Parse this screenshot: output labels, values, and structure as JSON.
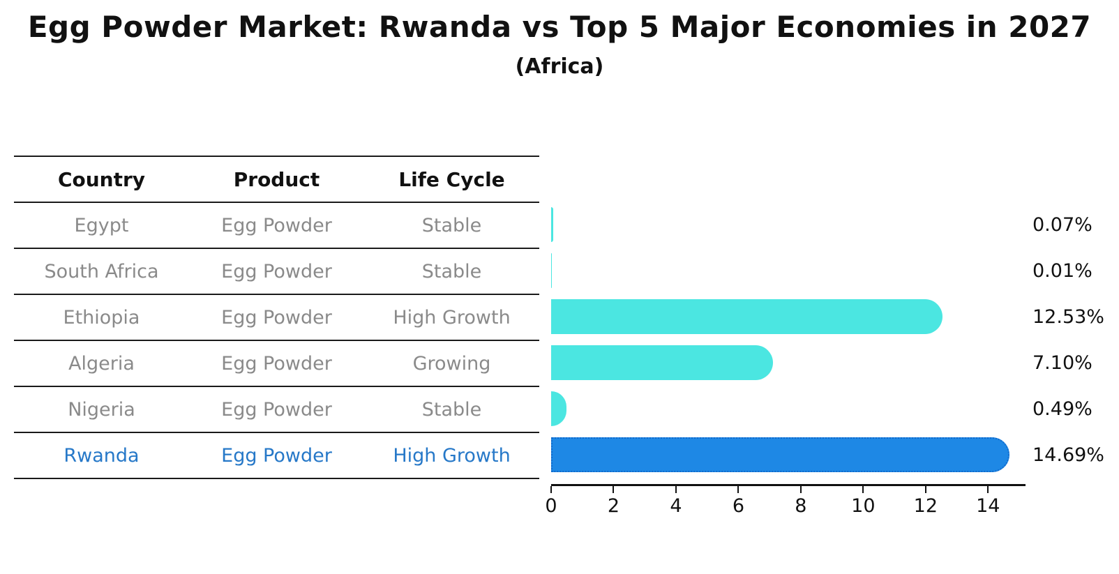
{
  "title": "Egg Powder Market: Rwanda vs Top 5 Major Economies in 2027",
  "subtitle": "(Africa)",
  "table": {
    "headers": [
      "Country",
      "Product",
      "Life Cycle"
    ],
    "rows": [
      {
        "country": "Egypt",
        "product": "Egg Powder",
        "life_cycle": "Stable",
        "value_label": "0.07%"
      },
      {
        "country": "South Africa",
        "product": "Egg Powder",
        "life_cycle": "Stable",
        "value_label": "0.01%"
      },
      {
        "country": "Ethiopia",
        "product": "Egg Powder",
        "life_cycle": "High Growth",
        "value_label": "12.53%"
      },
      {
        "country": "Algeria",
        "product": "Egg Powder",
        "life_cycle": "Growing",
        "value_label": "7.10%"
      },
      {
        "country": "Nigeria",
        "product": "Egg Powder",
        "life_cycle": "Stable",
        "value_label": "0.49%"
      },
      {
        "country": "Rwanda",
        "product": "Egg Powder",
        "life_cycle": "High Growth",
        "value_label": "14.69%"
      }
    ]
  },
  "chart_data": {
    "type": "bar",
    "orientation": "horizontal",
    "title": "Egg Powder Market: Rwanda vs Top 5 Major Economies in 2027",
    "subtitle": "(Africa)",
    "categories": [
      "Egypt",
      "South Africa",
      "Ethiopia",
      "Algeria",
      "Nigeria",
      "Rwanda"
    ],
    "values": [
      0.07,
      0.01,
      12.53,
      7.1,
      0.49,
      14.69
    ],
    "value_labels": [
      "0.07%",
      "0.01%",
      "12.53%",
      "7.10%",
      "0.49%",
      "14.69%"
    ],
    "unit": "%",
    "xlabel": "",
    "ylabel": "",
    "xlim": [
      0,
      15.2
    ],
    "xticks": [
      0,
      2,
      4,
      6,
      8,
      10,
      12,
      14
    ],
    "grid": false,
    "legend": false,
    "highlight_index": 5
  },
  "colors": {
    "bar_default": "#4BE6E1",
    "bar_highlight": "#1E88E5",
    "highlight_text": "#2678C8",
    "cell_text": "#8A8A8A",
    "line": "#1A1A1A",
    "label_text": "#111111"
  }
}
